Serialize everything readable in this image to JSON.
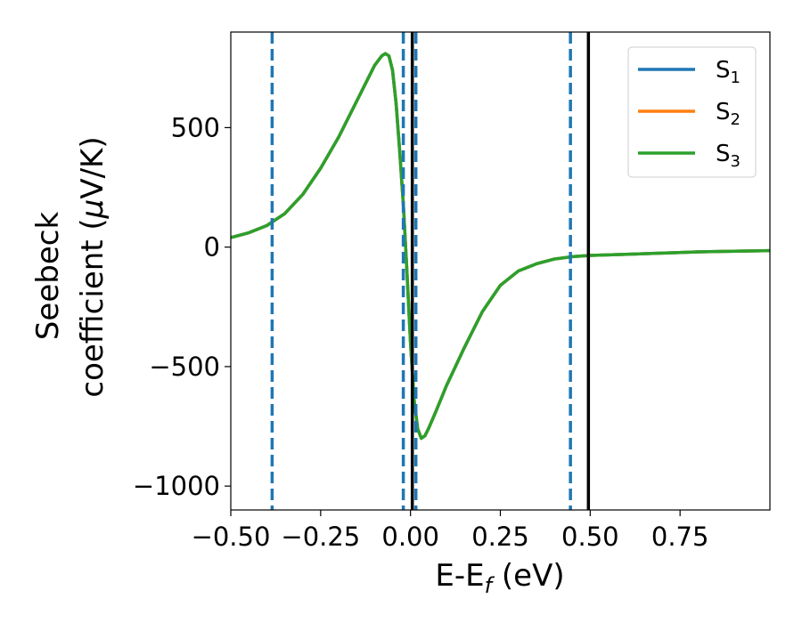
{
  "chart_data": {
    "type": "line",
    "title": "",
    "xlabel": "E-E",
    "xlabel_sub": "f",
    "xlabel_unit": " (eV)",
    "ylabel_line1": "Seebeck",
    "ylabel_line2": "coefficient  (",
    "ylabel_mu": "μ",
    "ylabel_unit": "V/K)",
    "xlim": [
      -0.5,
      1.0
    ],
    "ylim": [
      -1100,
      900
    ],
    "xticks": [
      -0.5,
      -0.25,
      0.0,
      0.25,
      0.5,
      0.75
    ],
    "xtick_labels": [
      "−0.50",
      "−0.25",
      "0.00",
      "0.25",
      "0.50",
      "0.75"
    ],
    "yticks": [
      500,
      0,
      -500,
      -1000
    ],
    "ytick_labels": [
      "500",
      "0",
      "−500",
      "−1000"
    ],
    "grid": false,
    "legend_position": "top-right",
    "series": [
      {
        "name": "S",
        "name_sub": "1",
        "color": "#1f77b4",
        "x": [
          -0.5,
          -0.45,
          -0.4,
          -0.35,
          -0.3,
          -0.25,
          -0.2,
          -0.15,
          -0.12,
          -0.1,
          -0.08,
          -0.07,
          -0.06,
          -0.05,
          -0.04,
          -0.03,
          -0.02,
          -0.01,
          0.0,
          0.01,
          0.02,
          0.03,
          0.04,
          0.05,
          0.07,
          0.1,
          0.15,
          0.2,
          0.25,
          0.3,
          0.35,
          0.4,
          0.45,
          0.5,
          0.6,
          0.7,
          0.8,
          0.9,
          1.0
        ],
        "y": [
          40,
          60,
          90,
          140,
          220,
          330,
          460,
          610,
          700,
          760,
          800,
          810,
          800,
          740,
          600,
          400,
          180,
          -100,
          -400,
          -640,
          -760,
          -800,
          -790,
          -760,
          -690,
          -580,
          -420,
          -270,
          -160,
          -100,
          -70,
          -50,
          -40,
          -35,
          -30,
          -25,
          -20,
          -17,
          -15
        ]
      },
      {
        "name": "S",
        "name_sub": "2",
        "color": "#ff7f0e",
        "x": [
          -0.5,
          -0.45,
          -0.4,
          -0.35,
          -0.3,
          -0.25,
          -0.2,
          -0.15,
          -0.12,
          -0.1,
          -0.08,
          -0.07,
          -0.06,
          -0.05,
          -0.04,
          -0.03,
          -0.02,
          -0.01,
          0.0,
          0.01,
          0.02,
          0.03,
          0.04,
          0.05,
          0.07,
          0.1,
          0.15,
          0.2,
          0.25,
          0.3,
          0.35,
          0.4,
          0.45,
          0.5,
          0.6,
          0.7,
          0.8,
          0.9,
          1.0
        ],
        "y": [
          40,
          60,
          90,
          140,
          220,
          330,
          460,
          610,
          700,
          760,
          800,
          810,
          800,
          740,
          600,
          400,
          180,
          -100,
          -400,
          -640,
          -760,
          -800,
          -790,
          -760,
          -690,
          -580,
          -420,
          -270,
          -160,
          -100,
          -70,
          -50,
          -40,
          -35,
          -30,
          -25,
          -20,
          -17,
          -15
        ]
      },
      {
        "name": "S",
        "name_sub": "3",
        "color": "#2ca02c",
        "x": [
          -0.5,
          -0.45,
          -0.4,
          -0.35,
          -0.3,
          -0.25,
          -0.2,
          -0.15,
          -0.12,
          -0.1,
          -0.08,
          -0.07,
          -0.06,
          -0.05,
          -0.04,
          -0.03,
          -0.02,
          -0.01,
          0.0,
          0.01,
          0.02,
          0.03,
          0.04,
          0.05,
          0.07,
          0.1,
          0.15,
          0.2,
          0.25,
          0.3,
          0.35,
          0.4,
          0.45,
          0.5,
          0.6,
          0.7,
          0.8,
          0.9,
          1.0
        ],
        "y": [
          40,
          60,
          90,
          140,
          220,
          330,
          460,
          610,
          700,
          760,
          800,
          810,
          800,
          740,
          600,
          400,
          180,
          -100,
          -400,
          -640,
          -760,
          -800,
          -790,
          -760,
          -690,
          -580,
          -420,
          -270,
          -160,
          -100,
          -70,
          -50,
          -40,
          -35,
          -30,
          -25,
          -20,
          -17,
          -15
        ]
      }
    ],
    "vlines": [
      {
        "x": -0.385,
        "style": "dashed",
        "color": "#1f77b4"
      },
      {
        "x": -0.02,
        "style": "dashed",
        "color": "#1f77b4"
      },
      {
        "x": 0.015,
        "style": "dashed",
        "color": "#1f77b4"
      },
      {
        "x": 0.445,
        "style": "dashed",
        "color": "#1f77b4"
      },
      {
        "x": 0.005,
        "style": "solid",
        "color": "#000000"
      },
      {
        "x": 0.495,
        "style": "solid",
        "color": "#000000"
      }
    ]
  }
}
